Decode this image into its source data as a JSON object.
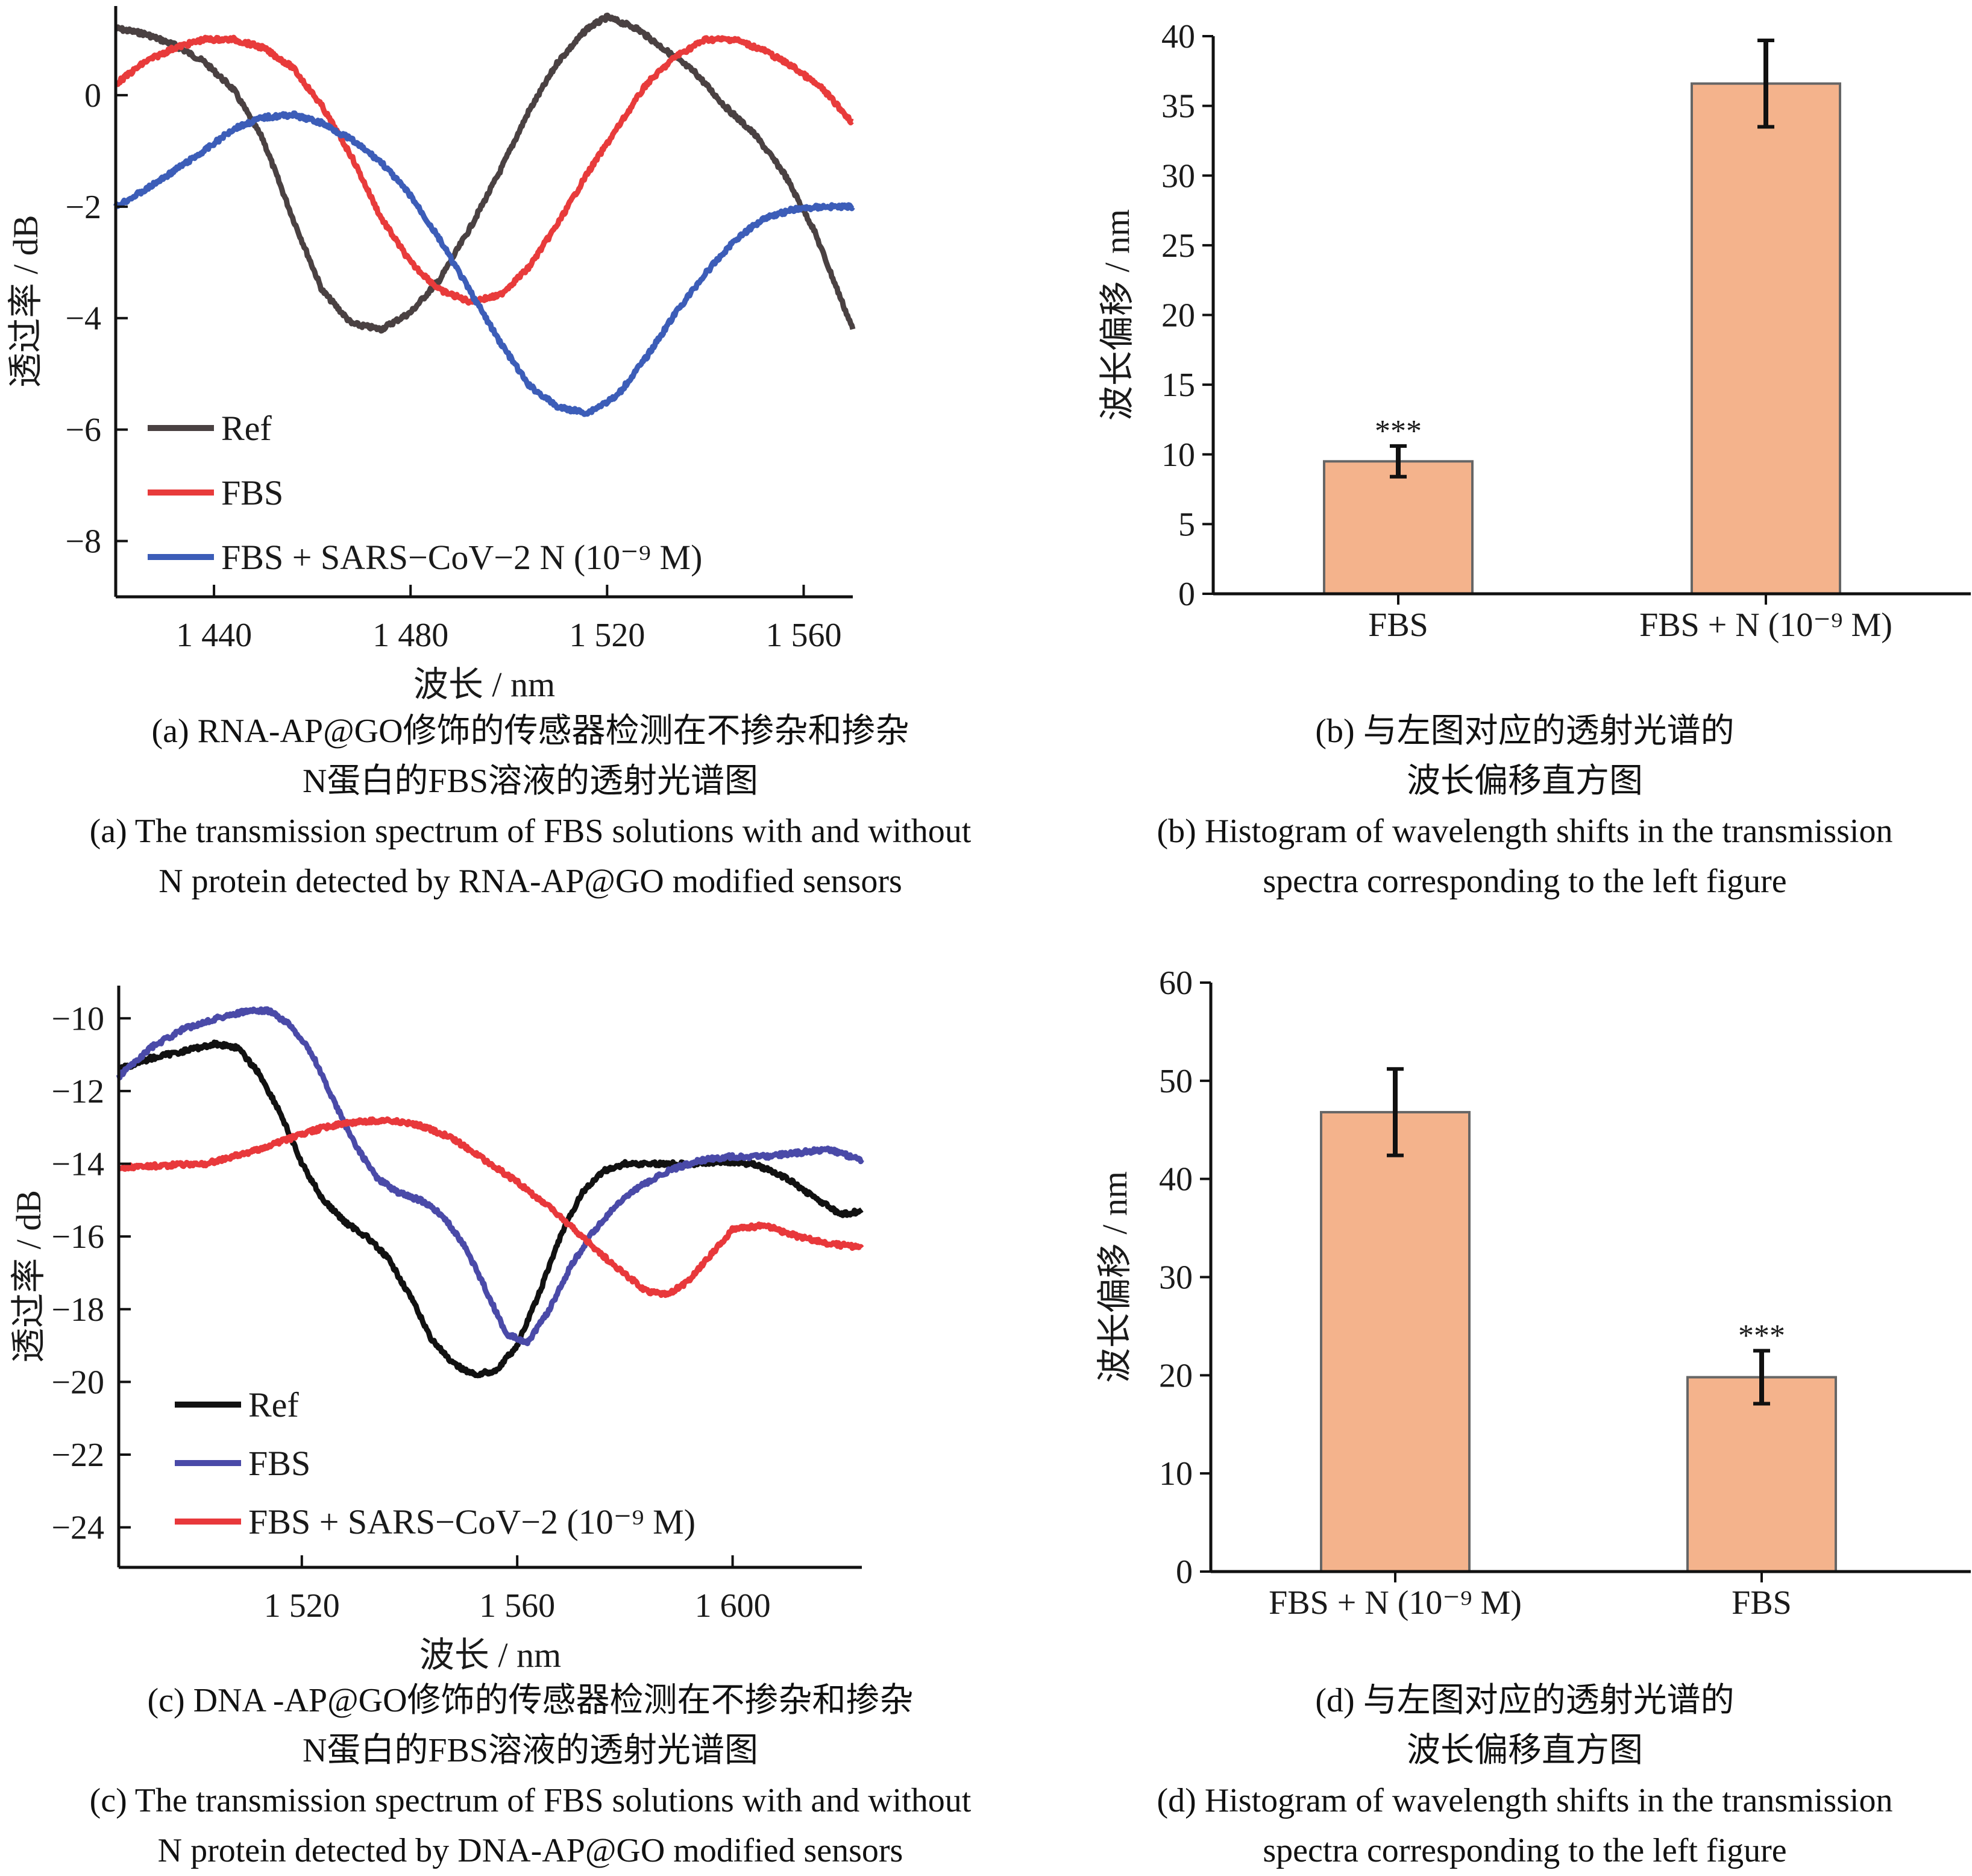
{
  "chart_data": [
    {
      "panel": "a",
      "type": "line",
      "xlabel": "波长 / nm",
      "ylabel": "透过率 / dB",
      "xlim": [
        1420,
        1570
      ],
      "ylim": [
        -9,
        1.6
      ],
      "xticks": [
        1440,
        1480,
        1520,
        1560
      ],
      "xtick_labels": [
        "1 440",
        "1 480",
        "1 520",
        "1 560"
      ],
      "yticks": [
        0,
        -2,
        -4,
        -6,
        -8
      ],
      "ytick_labels": [
        "0",
        "−2",
        "−4",
        "−6",
        "−8"
      ],
      "legend": "lower-left",
      "series": [
        {
          "name": "Ref",
          "color": "#4a4142",
          "x": [
            1420,
            1426,
            1432,
            1438,
            1444,
            1450,
            1456,
            1462,
            1468,
            1474,
            1480,
            1486,
            1492,
            1498,
            1504,
            1510,
            1516,
            1520,
            1526,
            1532,
            1538,
            1544,
            1550,
            1556,
            1562,
            1566,
            1570
          ],
          "y": [
            1.2,
            1.1,
            0.9,
            0.6,
            0.1,
            -0.8,
            -2.2,
            -3.5,
            -4.1,
            -4.2,
            -3.9,
            -3.3,
            -2.4,
            -1.4,
            -0.3,
            0.6,
            1.2,
            1.4,
            1.2,
            0.8,
            0.4,
            -0.2,
            -0.7,
            -1.4,
            -2.4,
            -3.3,
            -4.2
          ]
        },
        {
          "name": "FBS",
          "color": "#e83b3b",
          "x": [
            1420,
            1426,
            1432,
            1438,
            1444,
            1450,
            1456,
            1462,
            1468,
            1474,
            1480,
            1486,
            1492,
            1498,
            1504,
            1510,
            1516,
            1522,
            1528,
            1534,
            1540,
            1546,
            1552,
            1558,
            1564,
            1570
          ],
          "y": [
            0.2,
            0.6,
            0.85,
            1.0,
            1.0,
            0.85,
            0.5,
            -0.2,
            -1.1,
            -2.2,
            -3.0,
            -3.5,
            -3.7,
            -3.6,
            -3.1,
            -2.3,
            -1.4,
            -0.6,
            0.2,
            0.7,
            1.0,
            1.0,
            0.8,
            0.5,
            0.1,
            -0.5
          ]
        },
        {
          "name": "FBS + SARS−CoV−2 N (10⁻⁹ M)",
          "color": "#3c5db8",
          "x": [
            1420,
            1426,
            1432,
            1438,
            1444,
            1450,
            1456,
            1462,
            1468,
            1474,
            1480,
            1486,
            1492,
            1498,
            1504,
            1510,
            1516,
            1522,
            1528,
            1534,
            1540,
            1546,
            1552,
            1558,
            1564,
            1570
          ],
          "y": [
            -2.0,
            -1.7,
            -1.35,
            -1.0,
            -0.6,
            -0.4,
            -0.35,
            -0.5,
            -0.8,
            -1.2,
            -1.8,
            -2.6,
            -3.5,
            -4.4,
            -5.2,
            -5.6,
            -5.7,
            -5.4,
            -4.7,
            -3.9,
            -3.2,
            -2.6,
            -2.2,
            -2.05,
            -2.0,
            -2.0
          ]
        }
      ]
    },
    {
      "panel": "b",
      "type": "bar",
      "ylabel": "波长偏移 / nm",
      "ylim": [
        0,
        40
      ],
      "yticks": [
        0,
        5,
        10,
        15,
        20,
        25,
        30,
        35,
        40
      ],
      "categories": [
        "FBS",
        "FBS + N (10⁻⁹ M)"
      ],
      "values": [
        9.5,
        36.6
      ],
      "errors": [
        1.1,
        3.1
      ],
      "annotations": [
        "***",
        ""
      ],
      "bar_color": "#f4b38c"
    },
    {
      "panel": "c",
      "type": "line",
      "xlabel": "波长 / nm",
      "ylabel": "透过率 / dB",
      "xlim": [
        1486,
        1624
      ],
      "ylim": [
        -25.1,
        -9.1
      ],
      "xticks": [
        1520,
        1560,
        1600
      ],
      "xtick_labels": [
        "1 520",
        "1 560",
        "1 600"
      ],
      "yticks": [
        -10,
        -12,
        -14,
        -16,
        -18,
        -20,
        -22,
        -24
      ],
      "ytick_labels": [
        "−10",
        "−12",
        "−14",
        "−16",
        "−18",
        "−20",
        "−22",
        "−24"
      ],
      "legend": "lower-left",
      "series": [
        {
          "name": "Ref",
          "color": "#111111",
          "x": [
            1486,
            1492,
            1498,
            1504,
            1508,
            1512,
            1516,
            1520,
            1524,
            1528,
            1532,
            1536,
            1540,
            1544,
            1548,
            1552,
            1556,
            1560,
            1564,
            1568,
            1572,
            1576,
            1580,
            1586,
            1592,
            1598,
            1604,
            1610,
            1616,
            1620,
            1624
          ],
          "y": [
            -11.4,
            -11.1,
            -10.9,
            -10.7,
            -10.8,
            -11.5,
            -12.6,
            -14.0,
            -15.0,
            -15.6,
            -16.0,
            -16.6,
            -17.6,
            -18.8,
            -19.5,
            -19.8,
            -19.7,
            -19.0,
            -17.6,
            -16.0,
            -14.8,
            -14.2,
            -14.0,
            -14.0,
            -14.0,
            -13.95,
            -14.0,
            -14.4,
            -15.0,
            -15.4,
            -15.3
          ]
        },
        {
          "name": "FBS",
          "color": "#4a4aa8",
          "x": [
            1486,
            1492,
            1498,
            1504,
            1510,
            1514,
            1518,
            1522,
            1526,
            1530,
            1534,
            1538,
            1542,
            1546,
            1550,
            1554,
            1558,
            1562,
            1566,
            1570,
            1574,
            1578,
            1582,
            1588,
            1594,
            1600,
            1606,
            1612,
            1618,
            1624
          ],
          "y": [
            -11.6,
            -10.8,
            -10.3,
            -10.0,
            -9.8,
            -9.8,
            -10.2,
            -11.0,
            -12.3,
            -13.5,
            -14.4,
            -14.8,
            -15.0,
            -15.4,
            -16.2,
            -17.4,
            -18.7,
            -18.9,
            -18.0,
            -16.8,
            -15.9,
            -15.2,
            -14.7,
            -14.2,
            -13.9,
            -13.8,
            -13.8,
            -13.7,
            -13.6,
            -13.9
          ]
        },
        {
          "name": "FBS + SARS−CoV−2 (10⁻⁹ M)",
          "color": "#e8383b",
          "x": [
            1486,
            1494,
            1502,
            1510,
            1518,
            1524,
            1530,
            1536,
            1542,
            1548,
            1554,
            1560,
            1566,
            1572,
            1578,
            1584,
            1588,
            1592,
            1596,
            1600,
            1606,
            1612,
            1618,
            1624
          ],
          "y": [
            -14.1,
            -14.05,
            -14.0,
            -13.7,
            -13.3,
            -13.0,
            -12.85,
            -12.8,
            -12.95,
            -13.3,
            -13.9,
            -14.5,
            -15.2,
            -16.0,
            -16.8,
            -17.5,
            -17.6,
            -17.2,
            -16.5,
            -15.8,
            -15.7,
            -16.0,
            -16.2,
            -16.3
          ]
        }
      ]
    },
    {
      "panel": "d",
      "type": "bar",
      "ylabel": "波长偏移 / nm",
      "ylim": [
        0,
        60
      ],
      "yticks": [
        0,
        10,
        20,
        30,
        40,
        50,
        60
      ],
      "categories": [
        "FBS + N (10⁻⁹ M)",
        "FBS"
      ],
      "values": [
        46.8,
        19.8
      ],
      "errors": [
        4.4,
        2.7
      ],
      "annotations": [
        "",
        "***"
      ],
      "bar_color": "#f4b38c"
    }
  ],
  "captions": {
    "a": {
      "line1": "(a) RNA-AP@GO修饰的传感器检测在不掺杂和掺杂",
      "line2": "N蛋白的FBS溶液的透射光谱图",
      "line3": "(a) The transmission spectrum of FBS solutions with and without",
      "line4": "N protein detected by RNA-AP@GO modified sensors"
    },
    "b": {
      "line1": "(b) 与左图对应的透射光谱的",
      "line2": "波长偏移直方图",
      "line3": "(b) Histogram of wavelength shifts in the transmission",
      "line4": "spectra corresponding to the left figure"
    },
    "c": {
      "line1": "(c) DNA -AP@GO修饰的传感器检测在不掺杂和掺杂",
      "line2": "N蛋白的FBS溶液的透射光谱图",
      "line3": "(c) The transmission spectrum of FBS solutions with and without",
      "line4": "N protein detected by DNA-AP@GO modified sensors"
    },
    "d": {
      "line1": "(d) 与左图对应的透射光谱的",
      "line2": "波长偏移直方图",
      "line3": "(d) Histogram of wavelength shifts in the transmission",
      "line4": "spectra corresponding to the left figure"
    }
  }
}
